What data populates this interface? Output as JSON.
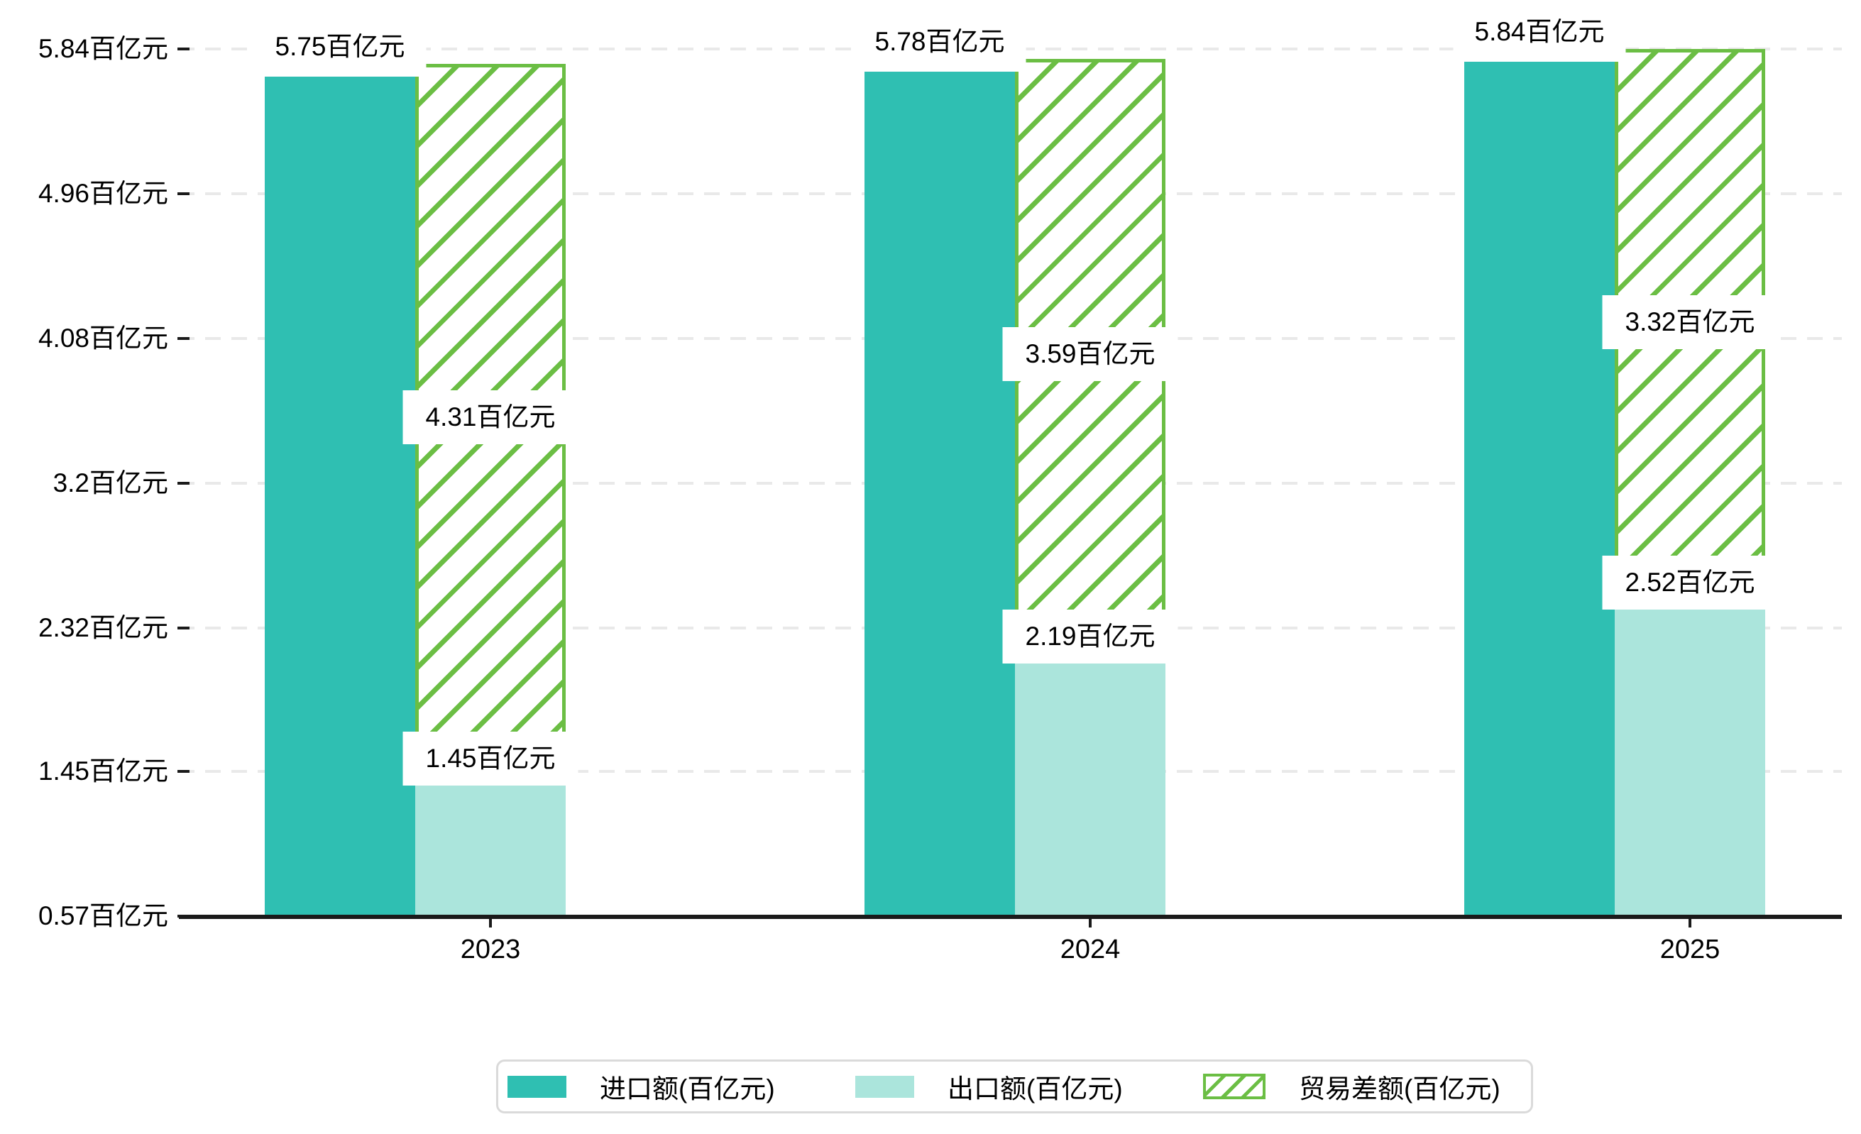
{
  "chart_data": {
    "type": "bar",
    "subtype": "grouped-with-stacked-difference",
    "categories": [
      "2023",
      "2024",
      "2025"
    ],
    "series": [
      {
        "name": "进口额(百亿元)",
        "role": "import",
        "values": [
          5.75,
          5.78,
          5.84
        ]
      },
      {
        "name": "出口额(百亿元)",
        "role": "export",
        "values": [
          1.45,
          2.19,
          2.52
        ]
      },
      {
        "name": "贸易差额(百亿元)",
        "role": "balance",
        "values": [
          4.31,
          3.59,
          3.32
        ]
      }
    ],
    "unit_suffix": "百亿元",
    "data_labels": {
      "import": [
        "5.75百亿元",
        "5.78百亿元",
        "5.84百亿元"
      ],
      "export": [
        "1.45百亿元",
        "2.19百亿元",
        "2.52百亿元"
      ],
      "balance": [
        "4.31百亿元",
        "3.59百亿元",
        "3.32百亿元"
      ]
    },
    "y_tick_labels": [
      "5.84百亿元",
      "4.96百亿元",
      "4.08百亿元",
      "3.2百亿元",
      "2.32百亿元",
      "1.45百亿元",
      "0.57百亿元"
    ],
    "y_tick_values": [
      5.84,
      4.96,
      4.08,
      3.2,
      2.32,
      1.45,
      0.57
    ],
    "ylim": [
      0.57,
      5.84
    ],
    "xlabel": "",
    "ylabel": "",
    "title": "",
    "grid": "horizontal-dashed",
    "legend_position": "bottom-center",
    "colors": {
      "import": "#2fbfb2",
      "export": "#abe5dc",
      "balance_edge": "#6bbe44",
      "grid": "#e9e9e9",
      "axis": "#1a1a1a",
      "label_background": "#ffffff",
      "legend_border": "#dadada"
    }
  },
  "legend": {
    "items": [
      {
        "label": "进口额(百亿元)",
        "swatch": "solid-teal"
      },
      {
        "label": "出口额(百亿元)",
        "swatch": "solid-light-teal"
      },
      {
        "label": "贸易差额(百亿元)",
        "swatch": "green-hatched"
      }
    ]
  }
}
